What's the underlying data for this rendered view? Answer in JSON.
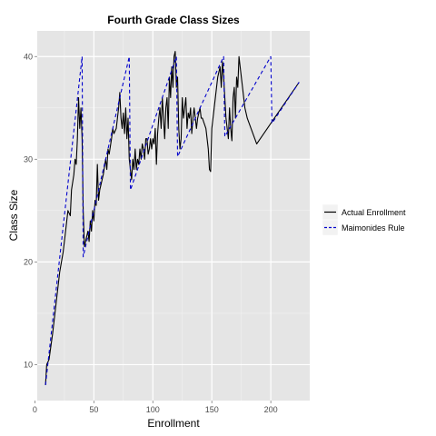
{
  "chart_data": {
    "type": "line",
    "title": "Fourth Grade Class Sizes",
    "xlabel": "Enrollment",
    "ylabel": "Class Size",
    "xlim": [
      2,
      233
    ],
    "ylim": [
      6.5,
      42.5
    ],
    "x_ticks": [
      0,
      50,
      100,
      150,
      200
    ],
    "y_ticks": [
      10,
      20,
      30,
      40
    ],
    "grid": true,
    "legend_position": "right",
    "series": [
      {
        "name": "Actual Enrollment",
        "color": "#000000",
        "dash": "solid",
        "points": [
          [
            9,
            8
          ],
          [
            10,
            10
          ],
          [
            12,
            10.5
          ],
          [
            15,
            13
          ],
          [
            18,
            16
          ],
          [
            21,
            19
          ],
          [
            24,
            21
          ],
          [
            27,
            24
          ],
          [
            28,
            25
          ],
          [
            30,
            24.5
          ],
          [
            31,
            27
          ],
          [
            33,
            28.5
          ],
          [
            34,
            30
          ],
          [
            35,
            29.5
          ],
          [
            36,
            32
          ],
          [
            37,
            36
          ],
          [
            38,
            33
          ],
          [
            39,
            35
          ],
          [
            40,
            32
          ],
          [
            41,
            25
          ],
          [
            42,
            21.5
          ],
          [
            43,
            22
          ],
          [
            44,
            22.5
          ],
          [
            45,
            23
          ],
          [
            46,
            22
          ],
          [
            47,
            24
          ],
          [
            48,
            23
          ],
          [
            49,
            25
          ],
          [
            50,
            24
          ],
          [
            51,
            26
          ],
          [
            52,
            25.5
          ],
          [
            53,
            29.5
          ],
          [
            54,
            26
          ],
          [
            55,
            27
          ],
          [
            56,
            27.5
          ],
          [
            57,
            28
          ],
          [
            58,
            28.5
          ],
          [
            60,
            30
          ],
          [
            61,
            29
          ],
          [
            62,
            31
          ],
          [
            63,
            30.5
          ],
          [
            65,
            32
          ],
          [
            66,
            33
          ],
          [
            67,
            32.5
          ],
          [
            69,
            33
          ],
          [
            71,
            35
          ],
          [
            72,
            36.5
          ],
          [
            73,
            34
          ],
          [
            74,
            33
          ],
          [
            75,
            34.5
          ],
          [
            76,
            32.5
          ],
          [
            77,
            35
          ],
          [
            78,
            32
          ],
          [
            79,
            34
          ],
          [
            80,
            30
          ],
          [
            81,
            29
          ],
          [
            82,
            28
          ],
          [
            83,
            30
          ],
          [
            84,
            29
          ],
          [
            85,
            31
          ],
          [
            86,
            29
          ],
          [
            87,
            30
          ],
          [
            88,
            29.5
          ],
          [
            89,
            31
          ],
          [
            90,
            30
          ],
          [
            91,
            31.5
          ],
          [
            92,
            31
          ],
          [
            93,
            30
          ],
          [
            94,
            32
          ],
          [
            95,
            32
          ],
          [
            96,
            30.5
          ],
          [
            97,
            31
          ],
          [
            98,
            32
          ],
          [
            99,
            31
          ],
          [
            100,
            32
          ],
          [
            101,
            31.5
          ],
          [
            102,
            33
          ],
          [
            103,
            29.5
          ],
          [
            104,
            32.5
          ],
          [
            105,
            34
          ],
          [
            106,
            35
          ],
          [
            107,
            33
          ],
          [
            108,
            36
          ],
          [
            109,
            34
          ],
          [
            110,
            32
          ],
          [
            111,
            35
          ],
          [
            112,
            36
          ],
          [
            113,
            33
          ],
          [
            114,
            38
          ],
          [
            115,
            36
          ],
          [
            116,
            39
          ],
          [
            117,
            37
          ],
          [
            118,
            40
          ],
          [
            119,
            40.5
          ],
          [
            120,
            37
          ],
          [
            121,
            38
          ],
          [
            122,
            33
          ],
          [
            123,
            31
          ],
          [
            124,
            32
          ],
          [
            125,
            36
          ],
          [
            126,
            34
          ],
          [
            127,
            35
          ],
          [
            128,
            36
          ],
          [
            129,
            33
          ],
          [
            130,
            34.5
          ],
          [
            131,
            34
          ],
          [
            132,
            35
          ],
          [
            133,
            32.5
          ],
          [
            134,
            34
          ],
          [
            135,
            35
          ],
          [
            136,
            34
          ],
          [
            137,
            33
          ],
          [
            138,
            34
          ],
          [
            140,
            35
          ],
          [
            141,
            34
          ],
          [
            142,
            34
          ],
          [
            145,
            33
          ],
          [
            147,
            31
          ],
          [
            148,
            29
          ],
          [
            149,
            28.8
          ],
          [
            150,
            33
          ],
          [
            151,
            34
          ],
          [
            152,
            35
          ],
          [
            153,
            36
          ],
          [
            154,
            37
          ],
          [
            155,
            38
          ],
          [
            157,
            39
          ],
          [
            158,
            37
          ],
          [
            159,
            39.5
          ],
          [
            160,
            38
          ],
          [
            161,
            36
          ],
          [
            162,
            34
          ],
          [
            163,
            33
          ],
          [
            164,
            32
          ],
          [
            165,
            35
          ],
          [
            166,
            33
          ],
          [
            167,
            31.8
          ],
          [
            168,
            36
          ],
          [
            169,
            37
          ],
          [
            170,
            34
          ],
          [
            171,
            38
          ],
          [
            172,
            37
          ],
          [
            173,
            40
          ],
          [
            174,
            39
          ],
          [
            175,
            38
          ],
          [
            176,
            37
          ],
          [
            177,
            36
          ],
          [
            178,
            35
          ],
          [
            179,
            34.5
          ],
          [
            180,
            34
          ],
          [
            188,
            31.5
          ],
          [
            224,
            37.5
          ]
        ]
      },
      {
        "name": "Maimonides Rule",
        "color": "#0000cc",
        "dash": "4,3",
        "points": [
          [
            9,
            8
          ],
          [
            40,
            40
          ],
          [
            41,
            20.5
          ],
          [
            80,
            40
          ],
          [
            81,
            27
          ],
          [
            120,
            40
          ],
          [
            121,
            30.25
          ],
          [
            160,
            40
          ],
          [
            161,
            32.2
          ],
          [
            200,
            40
          ],
          [
            201,
            33.5
          ],
          [
            224,
            37.5
          ]
        ]
      }
    ]
  }
}
